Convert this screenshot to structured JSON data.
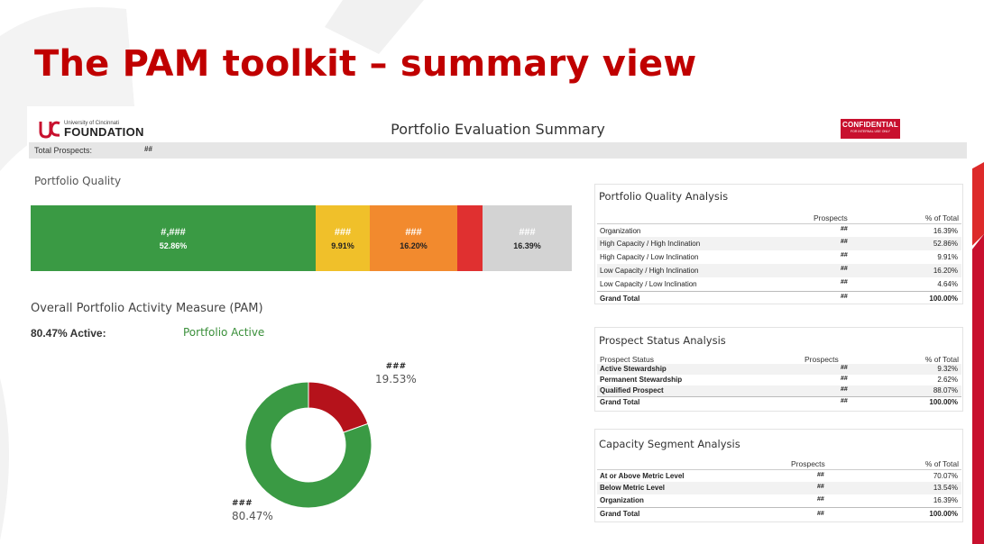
{
  "slide": {
    "title": "The PAM toolkit – summary view"
  },
  "dashboard": {
    "logo": {
      "small": "University of Cincinnati",
      "big": "FOUNDATION"
    },
    "title": "Portfolio Evaluation Summary",
    "confidential": {
      "label": "CONFIDENTIAL",
      "sub": "FOR INTERNAL USE ONLY"
    },
    "total_prospects": {
      "label": "Total Prospects:",
      "value": "##"
    }
  },
  "portfolio_quality": {
    "title": "Portfolio Quality",
    "segments": [
      {
        "value": "#,###",
        "percent": "52.86%",
        "color": "#3a9a44"
      },
      {
        "value": "###",
        "percent": "9.91%",
        "color": "#f0c02a"
      },
      {
        "value": "###",
        "percent": "16.20%",
        "color": "#f28a2e"
      },
      {
        "value": "",
        "percent": "",
        "color": "#e03030"
      },
      {
        "value": "###",
        "percent": "16.39%",
        "color": "#d3d3d3"
      }
    ]
  },
  "pam": {
    "title": "Overall Portfolio Activity Measure (PAM)",
    "active_label": "80.47% Active:",
    "portfolio_active": "Portfolio Active",
    "donut": {
      "slices": [
        {
          "value": "###",
          "percent": "19.53%",
          "fraction": 0.1953,
          "color": "#b5121b"
        },
        {
          "value": "###",
          "percent": "80.47%",
          "fraction": 0.8047,
          "color": "#3a9a44"
        }
      ]
    }
  },
  "quality_analysis": {
    "title": "Portfolio Quality Analysis",
    "col_prospects": "Prospects",
    "col_pct": "% of Total",
    "rows": [
      {
        "label": "Organization",
        "count": "##",
        "pct": "16.39%"
      },
      {
        "label": "High Capacity / High Inclination",
        "count": "##",
        "pct": "52.86%"
      },
      {
        "label": "High Capacity / Low Inclination",
        "count": "##",
        "pct": "9.91%"
      },
      {
        "label": "Low Capacity / High Inclination",
        "count": "##",
        "pct": "16.20%"
      },
      {
        "label": "Low Capacity / Low Inclination",
        "count": "##",
        "pct": "4.64%"
      }
    ],
    "total": {
      "label": "Grand Total",
      "count": "##",
      "pct": "100.00%"
    }
  },
  "status_analysis": {
    "title": "Prospect Status Analysis",
    "col_status": "Prospect Status",
    "col_prospects": "Prospects",
    "col_pct": "% of Total",
    "rows": [
      {
        "label": "Active Stewardship",
        "count": "##",
        "pct": "9.32%"
      },
      {
        "label": "Permanent Stewardship",
        "count": "##",
        "pct": "2.62%"
      },
      {
        "label": "Qualified Prospect",
        "count": "##",
        "pct": "88.07%"
      }
    ],
    "total": {
      "label": "Grand Total",
      "count": "##",
      "pct": "100.00%"
    }
  },
  "capacity_analysis": {
    "title": "Capacity Segment Analysis",
    "col_prospects": "Prospects",
    "col_pct": "% of Total",
    "rows": [
      {
        "label": "At or Above Metric Level",
        "count": "##",
        "pct": "70.07%"
      },
      {
        "label": "Below Metric Level",
        "count": "##",
        "pct": "13.54%"
      },
      {
        "label": "Organization",
        "count": "##",
        "pct": "16.39%"
      }
    ],
    "total": {
      "label": "Grand Total",
      "count": "##",
      "pct": "100.00%"
    }
  }
}
